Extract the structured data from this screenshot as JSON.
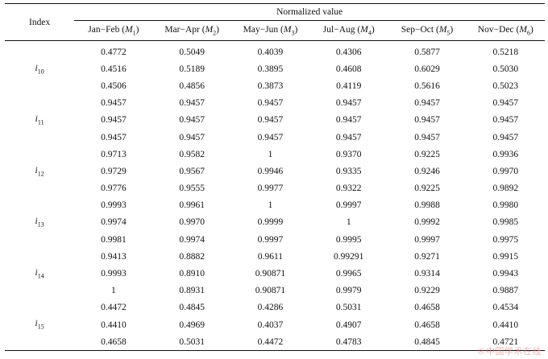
{
  "table": {
    "header": {
      "index_label": "Index",
      "group_label": "Normalized value",
      "columns": [
        {
          "name": "Jan−Feb (",
          "sym": "M",
          "sub": "1",
          "tail": ")"
        },
        {
          "name": "Mar−Apr (",
          "sym": "M",
          "sub": "2",
          "tail": ")"
        },
        {
          "name": "May−Jun (",
          "sym": "M",
          "sub": "3",
          "tail": ")"
        },
        {
          "name": "Jul−Aug (",
          "sym": "M",
          "sub": "4",
          "tail": ")"
        },
        {
          "name": "Sep−Oct (",
          "sym": "M",
          "sub": "5",
          "tail": ")"
        },
        {
          "name": "Nov−Dec (",
          "sym": "M",
          "sub": "6",
          "tail": ")"
        }
      ]
    },
    "groups": [
      {
        "index": "i",
        "sub": "10",
        "rows": [
          [
            "0.4772",
            "0.5049",
            "0.4039",
            "0.4306",
            "0.5877",
            "0.5218"
          ],
          [
            "0.4516",
            "0.5189",
            "0.3895",
            "0.4608",
            "0.6029",
            "0.5030"
          ],
          [
            "0.4506",
            "0.4856",
            "0.3873",
            "0.4119",
            "0.5616",
            "0.5023"
          ]
        ]
      },
      {
        "index": "i",
        "sub": "11",
        "rows": [
          [
            "0.9457",
            "0.9457",
            "0.9457",
            "0.9457",
            "0.9457",
            "0.9457"
          ],
          [
            "0.9457",
            "0.9457",
            "0.9457",
            "0.9457",
            "0.9457",
            "0.9457"
          ],
          [
            "0.9457",
            "0.9457",
            "0.9457",
            "0.9457",
            "0.9457",
            "0.9457"
          ]
        ]
      },
      {
        "index": "i",
        "sub": "12",
        "rows": [
          [
            "0.9713",
            "0.9582",
            "1",
            "0.9370",
            "0.9225",
            "0.9936"
          ],
          [
            "0.9729",
            "0.9567",
            "0.9946",
            "0.9335",
            "0.9246",
            "0.9970"
          ],
          [
            "0.9776",
            "0.9555",
            "0.9977",
            "0.9322",
            "0.9225",
            "0.9892"
          ]
        ]
      },
      {
        "index": "i",
        "sub": "13",
        "rows": [
          [
            "0.9993",
            "0.9961",
            "1",
            "0.9997",
            "0.9988",
            "0.9980"
          ],
          [
            "0.9974",
            "0.9970",
            "0.9999",
            "1",
            "0.9992",
            "0.9985"
          ],
          [
            "0.9981",
            "0.9974",
            "0.9997",
            "0.9995",
            "0.9997",
            "0.9975"
          ]
        ]
      },
      {
        "index": "i",
        "sub": "14",
        "rows": [
          [
            "0.9413",
            "0.8882",
            "0.9611",
            "0.99291",
            "0.9271",
            "0.9915"
          ],
          [
            "0.9993",
            "0.8910",
            "0.90871",
            "0.9965",
            "0.9314",
            "0.9943"
          ],
          [
            "1",
            "0.8931",
            "0.90871",
            "0.9979",
            "0.9229",
            "0.9887"
          ]
        ]
      },
      {
        "index": "i",
        "sub": "15",
        "rows": [
          [
            "0.4472",
            "0.4845",
            "0.4286",
            "0.5031",
            "0.4658",
            "0.4534"
          ],
          [
            "0.4410",
            "0.4969",
            "0.4037",
            "0.4907",
            "0.4658",
            "0.4410"
          ],
          [
            "0.4658",
            "0.5031",
            "0.4472",
            "0.4783",
            "0.4845",
            "0.4721"
          ]
        ]
      }
    ]
  },
  "watermark": "®中国学术在线"
}
